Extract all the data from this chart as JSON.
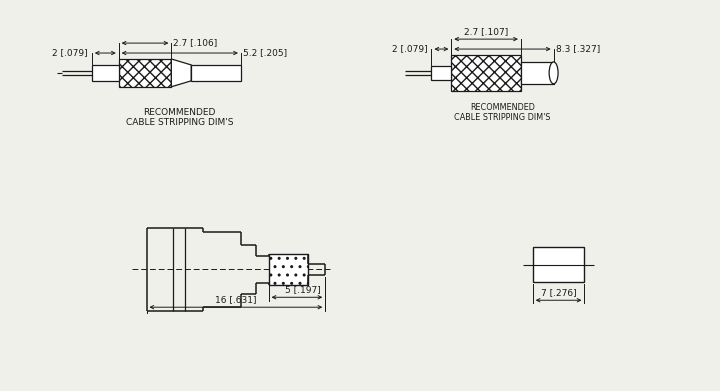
{
  "bg_color": "#f0f0eb",
  "line_color": "#1a1a1a",
  "font_family": "DejaVu Sans",
  "dim_fontsize": 6.5,
  "label_fontsize": 6.5,
  "top_left": {
    "cable_label": "2 [.079]",
    "dim1_label": "2.7 [.106]",
    "dim2_label": "5.2 [.205]",
    "caption_line1": "RECOMMENDED",
    "caption_line2": "CABLE STRIPPING DIM'S"
  },
  "top_right": {
    "cable_label": "2 [.079]",
    "dim1_label": "2.7 [.107]",
    "dim2_label": "8.3 [.327]",
    "caption_line1": "RECOMMENDED",
    "caption_line2": "CABLE STRIPPING DIM'S"
  },
  "bottom_left": {
    "dim1_label": "5 [.197]",
    "dim2_label": "16 [.631]"
  },
  "bottom_right": {
    "dim_label": "7 [.276]"
  }
}
